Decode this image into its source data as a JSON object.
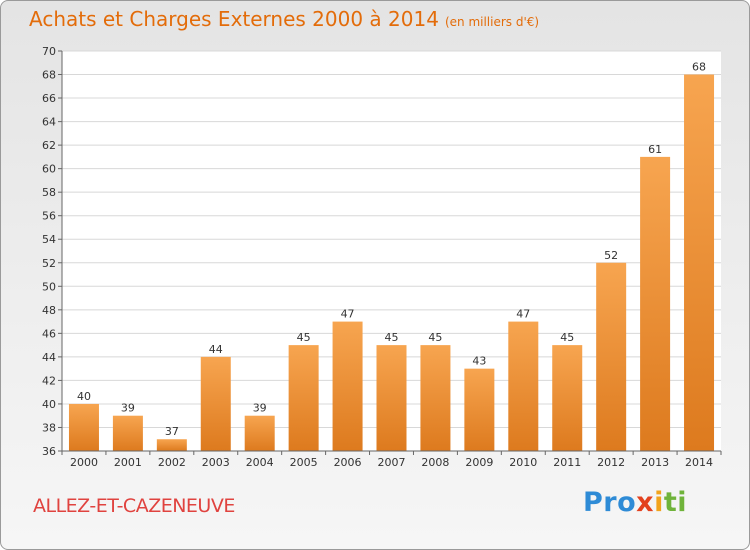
{
  "header": {
    "title": "Achats et Charges Externes 2000 à 2014",
    "unit": "(en milliers d'€)"
  },
  "footer": {
    "commune": "ALLEZ-ET-CAZENEUVE",
    "logo": {
      "p1": "Pro",
      "p2": "x",
      "p3": "i",
      "p4": "ti"
    }
  },
  "colors": {
    "title": "#e36c0a",
    "commune": "#e0433f",
    "bar_light": "#f7a550",
    "bar_dark": "#dd7a1e"
  },
  "chart_data": {
    "type": "bar",
    "title": "Achats et Charges Externes 2000 à 2014",
    "subtitle": "(en milliers d'€)",
    "categories": [
      "2000",
      "2001",
      "2002",
      "2003",
      "2004",
      "2005",
      "2006",
      "2007",
      "2008",
      "2009",
      "2010",
      "2011",
      "2012",
      "2013",
      "2014"
    ],
    "values": [
      40,
      39,
      37,
      44,
      39,
      45,
      47,
      45,
      45,
      43,
      47,
      45,
      52,
      61,
      68
    ],
    "ylim": [
      36,
      70
    ],
    "yticks": [
      36,
      38,
      40,
      42,
      44,
      46,
      48,
      50,
      52,
      54,
      56,
      58,
      60,
      62,
      64,
      66,
      68,
      70
    ],
    "grid": true,
    "data_labels": true
  }
}
